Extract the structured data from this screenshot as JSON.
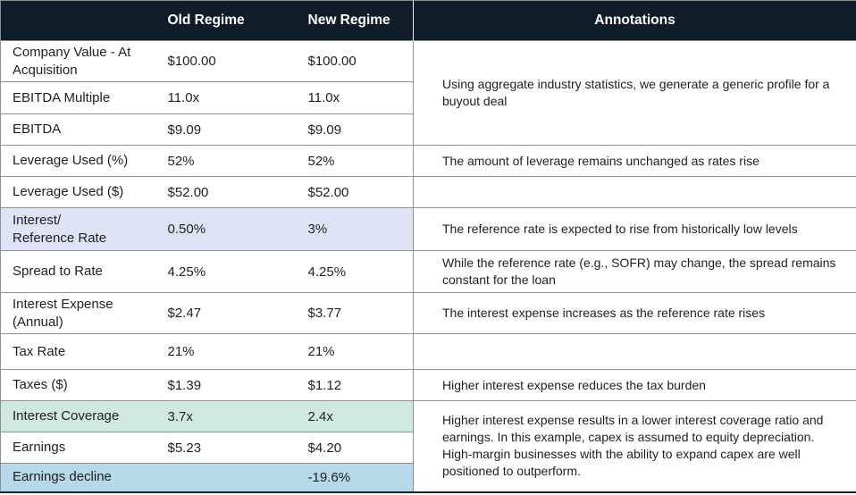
{
  "colors": {
    "header-bg": "#101c29",
    "header-text": "#ffffff",
    "body-text": "#1f1f1f",
    "border-gray": "#8f8f8f",
    "bottom-border": "#16212d",
    "hl-lavender": "#e1e2f6",
    "hl-teal": "#cfe8e2",
    "hl-blue": "#b6d9ea"
  },
  "table": {
    "header": {
      "metric": "",
      "old_regime": "Old Regime",
      "new_regime": "New Regime",
      "annotations": "Annotations"
    },
    "rows": [
      {
        "label": "Company Value - At\nAcquisition",
        "old": "$100.00",
        "new": "$100.00",
        "annotation": "Using aggregate industry statistics, we generate a generic profile for a buyout deal"
      },
      {
        "label": "EBITDA Multiple",
        "old": "11.0x",
        "new": "11.0x"
      },
      {
        "label": "EBITDA",
        "old": "$9.09",
        "new": "$9.09"
      },
      {
        "label": "Leverage Used (%)",
        "old": "52%",
        "new": "52%",
        "annotation": "The amount of leverage remains unchanged as rates rise"
      },
      {
        "label": "Leverage Used ($)",
        "old": "$52.00",
        "new": "$52.00",
        "annotation": ""
      },
      {
        "label": "Interest/\nReference Rate",
        "old": "0.50%",
        "new": "3%",
        "annotation": "The reference rate is expected to rise from historically low levels",
        "highlight": "lavender"
      },
      {
        "label": "Spread to Rate",
        "old": "4.25%",
        "new": "4.25%",
        "annotation": "While the reference rate (e.g., SOFR) may change, the spread remains constant for the loan"
      },
      {
        "label": "Interest Expense\n(Annual)",
        "old": "$2.47",
        "new": "$3.77",
        "annotation": "The interest expense increases as the reference rate rises"
      },
      {
        "label": "Tax Rate",
        "old": "21%",
        "new": "21%",
        "annotation": ""
      },
      {
        "label": "Taxes ($)",
        "old": "$1.39",
        "new": "$1.12",
        "annotation": "Higher interest expense reduces the tax burden"
      },
      {
        "label": "Interest Coverage",
        "old": "3.7x",
        "new": "2.4x",
        "annotation": "Higher interest expense results in a lower interest coverage ratio and earnings. In this example, capex is assumed to equity depreciation. High-margin businesses with the ability to expand capex are well positioned to outperform.",
        "highlight": "teal"
      },
      {
        "label": "Earnings",
        "old": "$5.23",
        "new": "$4.20"
      },
      {
        "label": "Earnings decline",
        "old": "",
        "new": "-19.6%",
        "highlight": "blue"
      }
    ]
  },
  "chart_data": {
    "type": "table",
    "title": "",
    "columns": [
      "",
      "Old Regime",
      "New Regime",
      "Annotations"
    ],
    "rows": [
      [
        "Company Value - At Acquisition",
        "$100.00",
        "$100.00",
        "Using aggregate industry statistics, we generate a generic profile for a buyout deal"
      ],
      [
        "EBITDA Multiple",
        "11.0x",
        "11.0x",
        ""
      ],
      [
        "EBITDA",
        "$9.09",
        "$9.09",
        ""
      ],
      [
        "Leverage Used (%)",
        "52%",
        "52%",
        "The amount of leverage remains unchanged as rates rise"
      ],
      [
        "Leverage Used ($)",
        "$52.00",
        "$52.00",
        ""
      ],
      [
        "Interest/Reference Rate",
        "0.50%",
        "3%",
        "The reference rate is expected to rise from historically low levels"
      ],
      [
        "Spread to Rate",
        "4.25%",
        "4.25%",
        "While the reference rate (e.g., SOFR) may change, the spread remains constant for the loan"
      ],
      [
        "Interest Expense (Annual)",
        "$2.47",
        "$3.77",
        "The interest expense increases as the reference rate rises"
      ],
      [
        "Tax Rate",
        "21%",
        "21%",
        ""
      ],
      [
        "Taxes ($)",
        "$1.39",
        "$1.12",
        "Higher interest expense reduces the tax burden"
      ],
      [
        "Interest Coverage",
        "3.7x",
        "2.4x",
        "Higher interest expense results in a lower interest coverage ratio and earnings. In this example, capex is assumed to equity depreciation. High-margin businesses with the ability to expand capex are well positioned to outperform."
      ],
      [
        "Earnings",
        "$5.23",
        "$4.20",
        ""
      ],
      [
        "Earnings decline",
        "",
        "-19.6%",
        ""
      ]
    ],
    "highlighted_rows": {
      "Interest/Reference Rate": "#e1e2f6",
      "Interest Coverage": "#cfe8e2",
      "Earnings decline": "#b6d9ea"
    }
  }
}
